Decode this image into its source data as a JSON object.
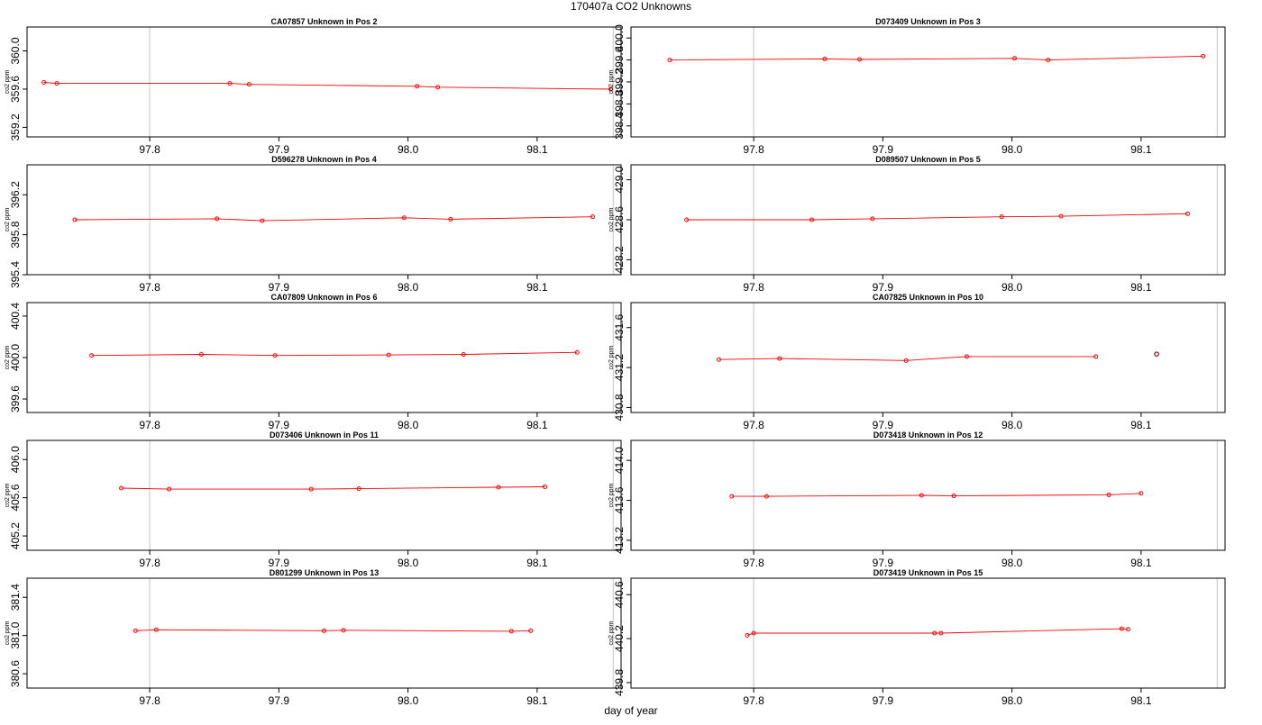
{
  "title": "170407a  CO2 Unknowns",
  "x_axis_label": "day of year",
  "chart_data": [
    {
      "type": "line",
      "title": "CA07857     Unknown in Pos 2",
      "ylabel": "co2 ppm",
      "xlim": [
        97.705,
        98.165
      ],
      "ylim": [
        359.1,
        360.25
      ],
      "yticks": [
        359.2,
        359.6,
        360.0
      ],
      "xticks": [
        97.8,
        97.9,
        98.0,
        98.1
      ],
      "vlines": [
        97.8,
        98.159
      ],
      "x": [
        97.718,
        97.728,
        97.862,
        97.877,
        98.007,
        98.023,
        98.157
      ],
      "y": [
        359.67,
        359.66,
        359.66,
        359.65,
        359.63,
        359.62,
        359.6
      ]
    },
    {
      "type": "line",
      "title": "D073409     Unknown in Pos 3",
      "ylabel": "co2 ppm",
      "xlim": [
        97.705,
        98.165
      ],
      "ylim": [
        398.2,
        400.2
      ],
      "yticks": [
        398.4,
        398.8,
        399.2,
        399.6,
        400.0
      ],
      "xticks": [
        97.8,
        97.9,
        98.0,
        98.1
      ],
      "vlines": [
        97.8,
        98.159
      ],
      "x": [
        97.735,
        97.855,
        97.882,
        98.002,
        98.028,
        98.148
      ],
      "y": [
        399.6,
        399.62,
        399.61,
        399.63,
        399.6,
        399.67
      ]
    },
    {
      "type": "line",
      "title": "D596278     Unknown in Pos 4",
      "ylabel": "co2 ppm",
      "xlim": [
        97.705,
        98.165
      ],
      "ylim": [
        395.4,
        396.5
      ],
      "yticks": [
        395.4,
        395.8,
        396.2
      ],
      "xticks": [
        97.8,
        97.9,
        98.0,
        98.1
      ],
      "vlines": [
        97.8,
        98.159
      ],
      "x": [
        97.742,
        97.852,
        97.887,
        97.997,
        98.033,
        98.143
      ],
      "y": [
        395.95,
        395.96,
        395.94,
        395.97,
        395.955,
        395.98
      ]
    },
    {
      "type": "line",
      "title": "D089507     Unknown in Pos 5",
      "ylabel": "co2 ppm",
      "xlim": [
        97.705,
        98.165
      ],
      "ylim": [
        428.05,
        429.15
      ],
      "yticks": [
        428.2,
        428.6,
        429.0
      ],
      "xticks": [
        97.8,
        97.9,
        98.0,
        98.1
      ],
      "vlines": [
        97.8,
        98.159
      ],
      "x": [
        97.748,
        97.845,
        97.892,
        97.992,
        98.038,
        98.136
      ],
      "y": [
        428.6,
        428.6,
        428.61,
        428.63,
        428.635,
        428.66
      ]
    },
    {
      "type": "line",
      "title": "CA07809     Unknown in Pos 6",
      "ylabel": "co2 ppm",
      "xlim": [
        97.705,
        98.165
      ],
      "ylim": [
        399.47,
        400.53
      ],
      "yticks": [
        399.6,
        400.0,
        400.4
      ],
      "xticks": [
        97.8,
        97.9,
        98.0,
        98.1
      ],
      "vlines": [
        97.8,
        98.159
      ],
      "x": [
        97.755,
        97.84,
        97.897,
        97.985,
        98.043,
        98.131
      ],
      "y": [
        400.02,
        400.03,
        400.02,
        400.025,
        400.03,
        400.05
      ]
    },
    {
      "type": "line",
      "title": "CA07825     Unknown in Pos 10",
      "ylabel": "co2 ppm",
      "xlim": [
        97.705,
        98.165
      ],
      "ylim": [
        430.75,
        431.85
      ],
      "yticks": [
        430.8,
        431.2,
        431.6
      ],
      "xticks": [
        97.8,
        97.9,
        98.0,
        98.1
      ],
      "vlines": [
        97.8,
        98.159
      ],
      "x": [
        97.773,
        97.82,
        97.918,
        97.965,
        98.065
      ],
      "y": [
        431.28,
        431.29,
        431.27,
        431.31,
        431.31
      ],
      "outlier": {
        "x": 98.112,
        "y": 431.335
      }
    },
    {
      "type": "line",
      "title": "D073406     Unknown in Pos 11",
      "ylabel": "co2 ppm",
      "xlim": [
        97.705,
        98.165
      ],
      "ylim": [
        405.05,
        406.2
      ],
      "yticks": [
        405.2,
        405.6,
        406.0
      ],
      "xticks": [
        97.8,
        97.9,
        98.0,
        98.1
      ],
      "vlines": [
        97.8,
        98.159
      ],
      "x": [
        97.778,
        97.815,
        97.925,
        97.962,
        98.07,
        98.106
      ],
      "y": [
        405.7,
        405.69,
        405.69,
        405.695,
        405.71,
        405.715
      ]
    },
    {
      "type": "line",
      "title": "D073418     Unknown in Pos 12",
      "ylabel": "co2 ppm",
      "xlim": [
        97.705,
        98.165
      ],
      "ylim": [
        413.1,
        414.2
      ],
      "yticks": [
        413.2,
        413.6,
        414.0
      ],
      "xticks": [
        97.8,
        97.9,
        98.0,
        98.1
      ],
      "vlines": [
        97.8,
        98.159
      ],
      "x": [
        97.783,
        97.81,
        97.93,
        97.955,
        98.075,
        98.1
      ],
      "y": [
        413.64,
        413.64,
        413.65,
        413.645,
        413.655,
        413.67
      ]
    },
    {
      "type": "line",
      "title": "D801299     Unknown in Pos 13",
      "ylabel": "co2 ppm",
      "xlim": [
        97.705,
        98.165
      ],
      "ylim": [
        380.45,
        381.6
      ],
      "yticks": [
        380.6,
        381.0,
        381.4
      ],
      "xticks": [
        97.8,
        97.9,
        98.0,
        98.1
      ],
      "vlines": [
        97.8,
        98.159
      ],
      "x": [
        97.789,
        97.805,
        97.935,
        97.95,
        98.08,
        98.095
      ],
      "y": [
        381.05,
        381.06,
        381.05,
        381.055,
        381.045,
        381.05
      ]
    },
    {
      "type": "line",
      "title": "D073419     Unknown in Pos 15",
      "ylabel": "co2 ppm",
      "xlim": [
        97.705,
        98.165
      ],
      "ylim": [
        439.75,
        440.75
      ],
      "yticks": [
        439.8,
        440.2,
        440.6
      ],
      "xticks": [
        97.8,
        97.9,
        98.0,
        98.1
      ],
      "vlines": [
        97.8,
        98.159
      ],
      "x": [
        97.795,
        97.8,
        97.94,
        97.945,
        98.085,
        98.09
      ],
      "y": [
        440.23,
        440.25,
        440.25,
        440.25,
        440.29,
        440.285
      ]
    }
  ]
}
